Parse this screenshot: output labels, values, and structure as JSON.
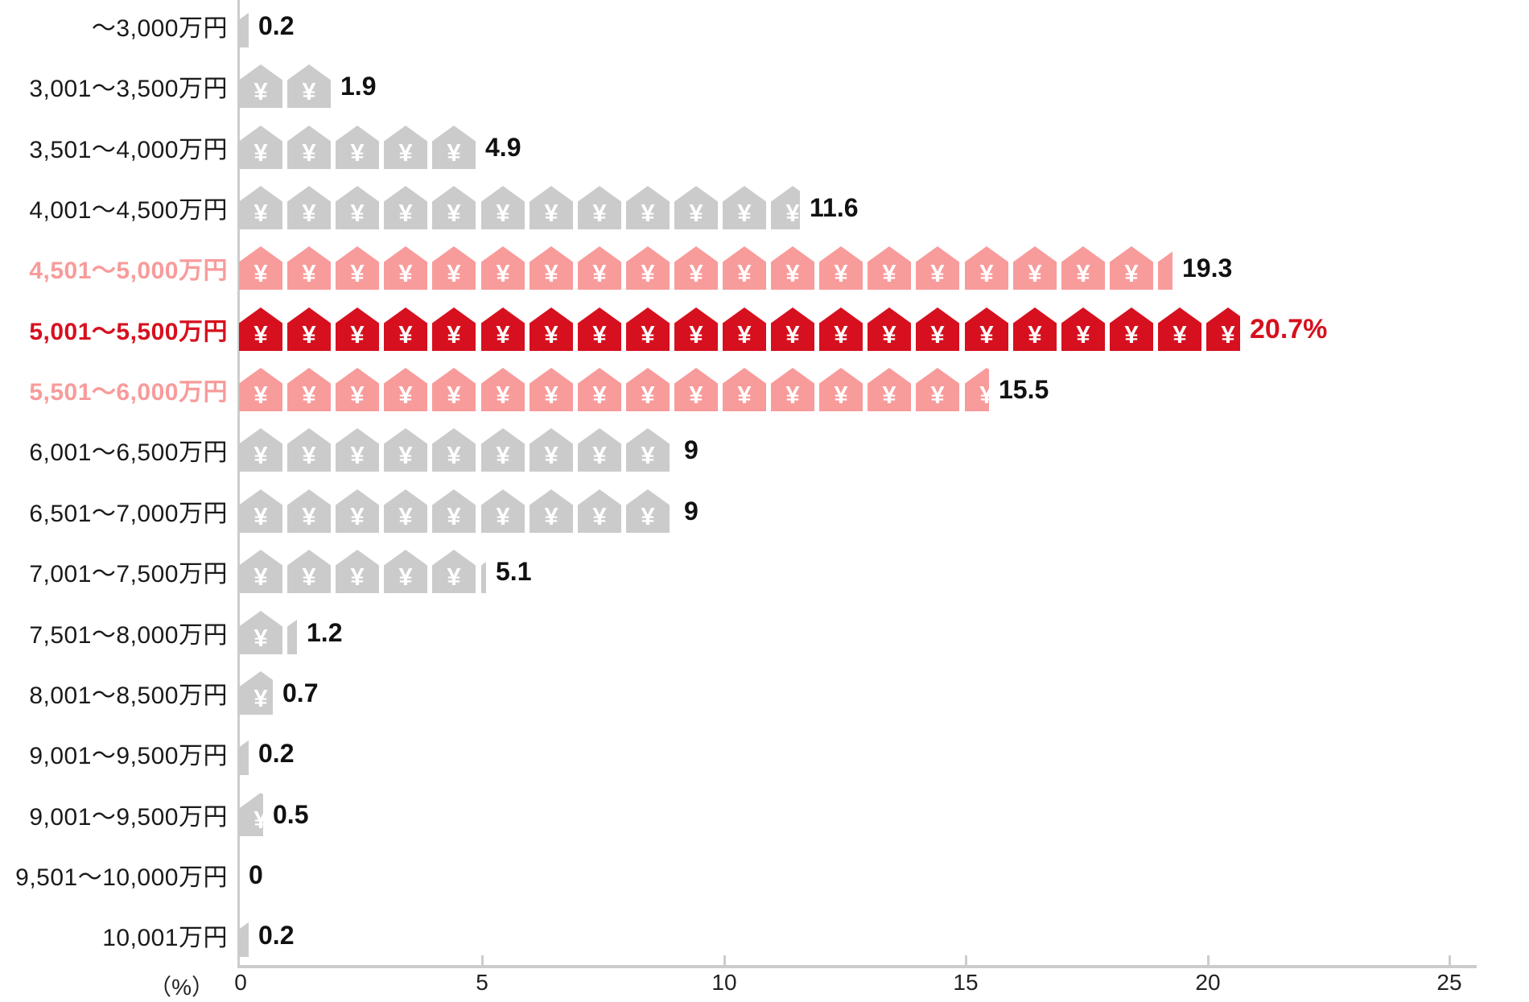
{
  "chart_data": {
    "type": "pictogram-bar",
    "icon": "house-with-yen",
    "icon_symbol": "¥",
    "percent_per_icon": 1,
    "unit_label": "（%）",
    "xlim": [
      0,
      25
    ],
    "x_ticks": [
      0,
      5,
      10,
      15,
      20,
      25
    ],
    "legend_position": "none",
    "grid": false,
    "categories": [
      "～3,000万円",
      "3,001～3,500万円",
      "3,501～4,000万円",
      "4,001～4,500万円",
      "4,501～5,000万円",
      "5,001～5,500万円",
      "5,501～6,000万円",
      "6,001～6,500万円",
      "6,501～7,000万円",
      "7,001～7,500万円",
      "7,501～8,000万円",
      "8,001～8,500万円",
      "9,001～9,500万円",
      "9,001～9,500万円",
      "9,501～10,000万円",
      "10,001万円"
    ],
    "values": [
      0.2,
      1.9,
      4.9,
      11.6,
      19.3,
      20.7,
      15.5,
      9,
      9,
      5.1,
      1.2,
      0.7,
      0.2,
      0.5,
      0,
      0.2
    ],
    "value_display": [
      "0.2",
      "1.9",
      "4.9",
      "11.6",
      "19.3",
      "20.7%",
      "15.5",
      "9",
      "9",
      "5.1",
      "1.2",
      "0.7",
      "0.2",
      "0.5",
      "0",
      "0.2"
    ],
    "emphasis": [
      "none",
      "none",
      "none",
      "none",
      "secondary",
      "primary",
      "secondary",
      "none",
      "none",
      "none",
      "none",
      "none",
      "none",
      "none",
      "none",
      "none"
    ],
    "colors": {
      "default": "#CBCBCB",
      "secondary": "#F89B9B",
      "primary": "#D6101E",
      "icon_symbol_color": "#FFFFFF",
      "label_text": "#1A1A1A",
      "value_text": "#111111",
      "axis": "#CCCCCC",
      "tick_text": "#222222"
    }
  }
}
